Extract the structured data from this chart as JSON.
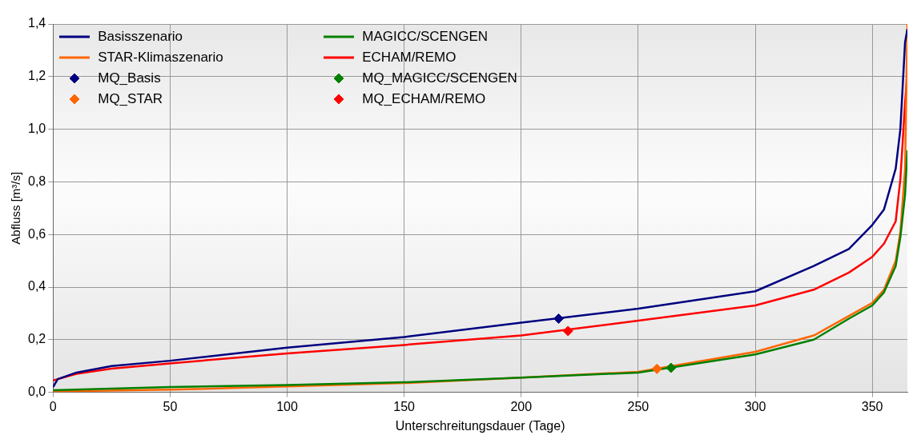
{
  "chart_data": {
    "type": "line",
    "xlabel": "Unterschreitungsdauer (Tage)",
    "ylabel": "Abfluss [m³/s]",
    "xlim": [
      0,
      365
    ],
    "xticks": [
      0,
      50,
      100,
      150,
      200,
      250,
      300,
      350
    ],
    "ylim": [
      0,
      1.4
    ],
    "yticks": [
      {
        "value": 0,
        "label": "0,0"
      },
      {
        "value": 0.2,
        "label": "0,2"
      },
      {
        "value": 0.4,
        "label": "0,4"
      },
      {
        "value": 0.6,
        "label": "0,6"
      },
      {
        "value": 0.8,
        "label": "0,8"
      },
      {
        "value": 1.0,
        "label": "1,0"
      },
      {
        "value": 1.2,
        "label": "1,2"
      },
      {
        "value": 1.4,
        "label": "1,4"
      }
    ],
    "grid": true,
    "legend": "top left",
    "marker": "none",
    "line_style": "solid",
    "series": [
      {
        "name": "Basisszenario",
        "color": "#000080",
        "x": [
          0,
          2,
          10,
          25,
          50,
          100,
          150,
          200,
          250,
          300,
          325,
          340,
          350,
          355,
          360,
          362,
          364,
          365
        ],
        "values": [
          0.02,
          0.05,
          0.075,
          0.1,
          0.12,
          0.17,
          0.21,
          0.265,
          0.318,
          0.384,
          0.48,
          0.545,
          0.636,
          0.695,
          0.85,
          1.0,
          1.33,
          1.38
        ]
      },
      {
        "name": "MAGICC/SCENGEN",
        "color": "#008000",
        "x": [
          0,
          50,
          100,
          150,
          200,
          250,
          300,
          325,
          340,
          350,
          355,
          360,
          362,
          364,
          365
        ],
        "values": [
          0.008,
          0.02,
          0.028,
          0.038,
          0.056,
          0.075,
          0.144,
          0.2,
          0.28,
          0.33,
          0.38,
          0.48,
          0.59,
          0.75,
          0.92
        ]
      },
      {
        "name": "STAR-Klimaszenario",
        "color": "#ff6600",
        "x": [
          0,
          50,
          100,
          150,
          200,
          250,
          300,
          325,
          340,
          350,
          355,
          360,
          362,
          364,
          365
        ],
        "values": [
          0.003,
          0.01,
          0.022,
          0.035,
          0.056,
          0.078,
          0.154,
          0.216,
          0.29,
          0.34,
          0.39,
          0.5,
          0.61,
          0.85,
          1.4
        ]
      },
      {
        "name": "ECHAM/REMO",
        "color": "#ff0000",
        "x": [
          0,
          2,
          10,
          25,
          50,
          100,
          150,
          200,
          250,
          300,
          325,
          340,
          350,
          355,
          360,
          362,
          364,
          365
        ],
        "values": [
          0.045,
          0.05,
          0.07,
          0.09,
          0.11,
          0.148,
          0.18,
          0.216,
          0.272,
          0.33,
          0.39,
          0.455,
          0.515,
          0.565,
          0.65,
          0.81,
          1.1,
          1.22
        ]
      },
      {
        "name": "MQ_Basis",
        "type": "scatter",
        "marker": "diamond",
        "color": "#000080",
        "x": [
          216
        ],
        "values": [
          0.28
        ]
      },
      {
        "name": "MQ_MAGICC/SCENGEN",
        "type": "scatter",
        "marker": "diamond",
        "color": "#008000",
        "x": [
          264
        ],
        "values": [
          0.093
        ]
      },
      {
        "name": "MQ_STAR",
        "type": "scatter",
        "marker": "diamond",
        "color": "#ff6600",
        "x": [
          258
        ],
        "values": [
          0.089
        ]
      },
      {
        "name": "MQ_ECHAM/REMO",
        "type": "scatter",
        "marker": "diamond",
        "color": "#ff0000",
        "x": [
          220
        ],
        "values": [
          0.233
        ]
      }
    ]
  }
}
